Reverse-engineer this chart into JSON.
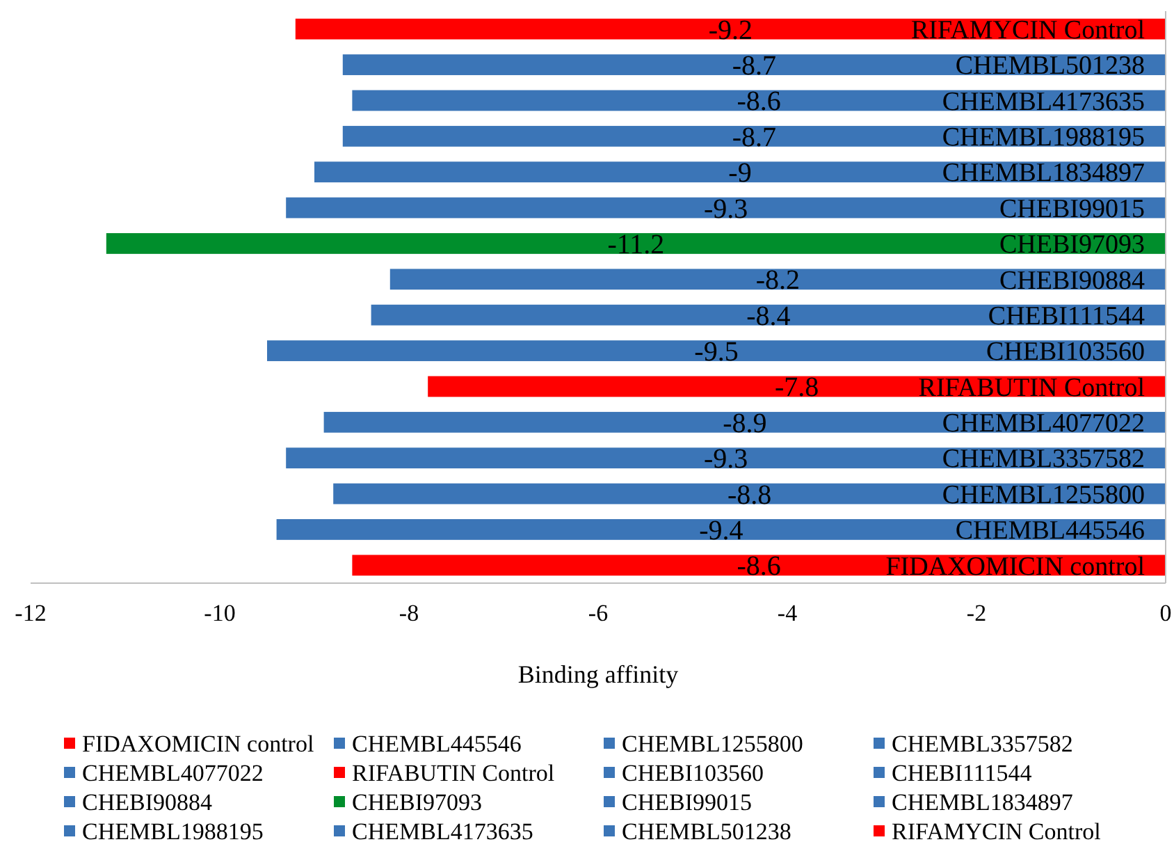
{
  "chart_data": {
    "type": "bar",
    "orientation": "horizontal",
    "stacked": true,
    "xlabel": "Binding affinity",
    "categories": [
      "RIFAMYCIN Control",
      "CHEMBL501238",
      "CHEMBL4173635",
      "CHEMBL1988195",
      "CHEMBL1834897",
      "CHEBI99015",
      "CHEBI97093",
      "CHEBI90884",
      "CHEBI111544",
      "CHEBI103560",
      "RIFABUTIN Control",
      "CHEMBL4077022",
      "CHEMBL3357582",
      "CHEMBL1255800",
      "CHEMBL445546",
      "FIDAXOMICIN control"
    ],
    "series": [
      {
        "name": "FIDAXOMICIN control",
        "color": "#ff0000",
        "values": [
          null,
          null,
          null,
          null,
          null,
          null,
          null,
          null,
          null,
          null,
          null,
          null,
          null,
          null,
          null,
          -8.6
        ]
      },
      {
        "name": "CHEMBL445546",
        "color": "#3b75b7",
        "values": [
          null,
          null,
          null,
          null,
          null,
          null,
          null,
          null,
          null,
          null,
          null,
          null,
          null,
          null,
          -9.4,
          null
        ]
      },
      {
        "name": "CHEMBL1255800",
        "color": "#3b75b7",
        "values": [
          null,
          null,
          null,
          null,
          null,
          null,
          null,
          null,
          null,
          null,
          null,
          null,
          null,
          -8.8,
          null,
          null
        ]
      },
      {
        "name": "CHEMBL3357582",
        "color": "#3b75b7",
        "values": [
          null,
          null,
          null,
          null,
          null,
          null,
          null,
          null,
          null,
          null,
          null,
          null,
          -9.3,
          null,
          null,
          null
        ]
      },
      {
        "name": "CHEMBL4077022",
        "color": "#3b75b7",
        "values": [
          null,
          null,
          null,
          null,
          null,
          null,
          null,
          null,
          null,
          null,
          null,
          -8.9,
          null,
          null,
          null,
          null
        ]
      },
      {
        "name": "RIFABUTIN Control",
        "color": "#ff0000",
        "values": [
          null,
          null,
          null,
          null,
          null,
          null,
          null,
          null,
          null,
          null,
          -7.8,
          null,
          null,
          null,
          null,
          null
        ]
      },
      {
        "name": "CHEBI103560",
        "color": "#3b75b7",
        "values": [
          null,
          null,
          null,
          null,
          null,
          null,
          null,
          null,
          null,
          -9.5,
          null,
          null,
          null,
          null,
          null,
          null
        ]
      },
      {
        "name": "CHEBI111544",
        "color": "#3b75b7",
        "values": [
          null,
          null,
          null,
          null,
          null,
          null,
          null,
          null,
          -8.4,
          null,
          null,
          null,
          null,
          null,
          null,
          null
        ]
      },
      {
        "name": "CHEBI90884",
        "color": "#3b75b7",
        "values": [
          null,
          null,
          null,
          null,
          null,
          null,
          null,
          -8.2,
          null,
          null,
          null,
          null,
          null,
          null,
          null,
          null
        ]
      },
      {
        "name": "CHEBI97093",
        "color": "#008e2c",
        "values": [
          null,
          null,
          null,
          null,
          null,
          null,
          -11.2,
          null,
          null,
          null,
          null,
          null,
          null,
          null,
          null,
          null
        ]
      },
      {
        "name": "CHEBI99015",
        "color": "#3b75b7",
        "values": [
          null,
          null,
          null,
          null,
          null,
          -9.3,
          null,
          null,
          null,
          null,
          null,
          null,
          null,
          null,
          null,
          null
        ]
      },
      {
        "name": "CHEMBL1834897",
        "color": "#3b75b7",
        "values": [
          null,
          null,
          null,
          null,
          -9,
          null,
          null,
          null,
          null,
          null,
          null,
          null,
          null,
          null,
          null,
          null
        ]
      },
      {
        "name": "CHEMBL1988195",
        "color": "#3b75b7",
        "values": [
          null,
          null,
          null,
          -8.7,
          null,
          null,
          null,
          null,
          null,
          null,
          null,
          null,
          null,
          null,
          null,
          null
        ]
      },
      {
        "name": "CHEMBL4173635",
        "color": "#3b75b7",
        "values": [
          null,
          null,
          -8.6,
          null,
          null,
          null,
          null,
          null,
          null,
          null,
          null,
          null,
          null,
          null,
          null,
          null
        ]
      },
      {
        "name": "CHEMBL501238",
        "color": "#3b75b7",
        "values": [
          null,
          -8.7,
          null,
          null,
          null,
          null,
          null,
          null,
          null,
          null,
          null,
          null,
          null,
          null,
          null,
          null
        ]
      },
      {
        "name": "RIFAMYCIN Control",
        "color": "#ff0000",
        "values": [
          -9.2,
          null,
          null,
          null,
          null,
          null,
          null,
          null,
          null,
          null,
          null,
          null,
          null,
          null,
          null,
          null
        ]
      }
    ],
    "xlim": [
      -12,
      0
    ],
    "xticks": [
      -12,
      -10,
      -8,
      -6,
      -4,
      -2,
      0
    ],
    "data_labels": true,
    "legend": "bottom"
  }
}
